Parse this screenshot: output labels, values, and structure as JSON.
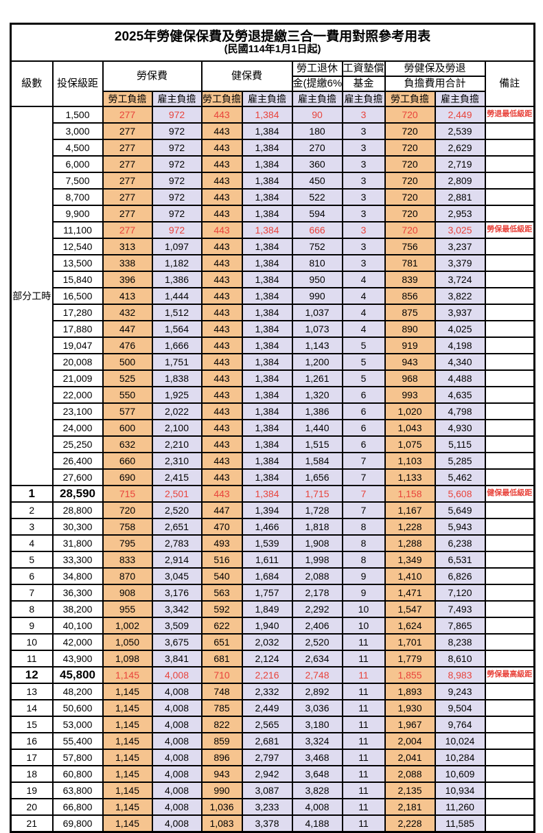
{
  "title": "2025年勞健保保費及勞退提繳三合一費用對照參考用表",
  "subtitle": "(民國114年1月1日起)",
  "header": {
    "level": "級數",
    "bracket": "投保級距",
    "labor": "勞保費",
    "health": "健保費",
    "pension_line1": "勞工退休",
    "pension_line2": "金(提繳6%)",
    "wage_line1": "工資墊償",
    "wage_line2": "基金",
    "total_line1": "勞健保及勞退",
    "total_line2": "負擔費用合計",
    "note": "備註",
    "employee": "勞工負擔",
    "employer": "雇主負擔"
  },
  "part_time": {
    "label": "部分工時",
    "span": 23
  },
  "colors": {
    "employee_bg": "#F6C48F",
    "employer_bg": "#DFDCF0",
    "highlight_red": "#E8433B"
  },
  "rows": [
    {
      "bracket": "1,500",
      "v": [
        "277",
        "972",
        "443",
        "1,384",
        "90",
        "3",
        "720",
        "2,449"
      ],
      "note": "勞退最低級距",
      "red": true
    },
    {
      "bracket": "3,000",
      "v": [
        "277",
        "972",
        "443",
        "1,384",
        "180",
        "3",
        "720",
        "2,539"
      ]
    },
    {
      "bracket": "4,500",
      "v": [
        "277",
        "972",
        "443",
        "1,384",
        "270",
        "3",
        "720",
        "2,629"
      ]
    },
    {
      "bracket": "6,000",
      "v": [
        "277",
        "972",
        "443",
        "1,384",
        "360",
        "3",
        "720",
        "2,719"
      ]
    },
    {
      "bracket": "7,500",
      "v": [
        "277",
        "972",
        "443",
        "1,384",
        "450",
        "3",
        "720",
        "2,809"
      ]
    },
    {
      "bracket": "8,700",
      "v": [
        "277",
        "972",
        "443",
        "1,384",
        "522",
        "3",
        "720",
        "2,881"
      ]
    },
    {
      "bracket": "9,900",
      "v": [
        "277",
        "972",
        "443",
        "1,384",
        "594",
        "3",
        "720",
        "2,953"
      ]
    },
    {
      "bracket": "11,100",
      "v": [
        "277",
        "972",
        "443",
        "1,384",
        "666",
        "3",
        "720",
        "3,025"
      ],
      "note": "勞保最低級距",
      "red": true
    },
    {
      "bracket": "12,540",
      "v": [
        "313",
        "1,097",
        "443",
        "1,384",
        "752",
        "3",
        "756",
        "3,237"
      ]
    },
    {
      "bracket": "13,500",
      "v": [
        "338",
        "1,182",
        "443",
        "1,384",
        "810",
        "3",
        "781",
        "3,379"
      ]
    },
    {
      "bracket": "15,840",
      "v": [
        "396",
        "1,386",
        "443",
        "1,384",
        "950",
        "4",
        "839",
        "3,724"
      ]
    },
    {
      "bracket": "16,500",
      "v": [
        "413",
        "1,444",
        "443",
        "1,384",
        "990",
        "4",
        "856",
        "3,822"
      ]
    },
    {
      "bracket": "17,280",
      "v": [
        "432",
        "1,512",
        "443",
        "1,384",
        "1,037",
        "4",
        "875",
        "3,937"
      ]
    },
    {
      "bracket": "17,880",
      "v": [
        "447",
        "1,564",
        "443",
        "1,384",
        "1,073",
        "4",
        "890",
        "4,025"
      ]
    },
    {
      "bracket": "19,047",
      "v": [
        "476",
        "1,666",
        "443",
        "1,384",
        "1,143",
        "5",
        "919",
        "4,198"
      ]
    },
    {
      "bracket": "20,008",
      "v": [
        "500",
        "1,751",
        "443",
        "1,384",
        "1,200",
        "5",
        "943",
        "4,340"
      ]
    },
    {
      "bracket": "21,009",
      "v": [
        "525",
        "1,838",
        "443",
        "1,384",
        "1,261",
        "5",
        "968",
        "4,488"
      ]
    },
    {
      "bracket": "22,000",
      "v": [
        "550",
        "1,925",
        "443",
        "1,384",
        "1,320",
        "6",
        "993",
        "4,635"
      ]
    },
    {
      "bracket": "23,100",
      "v": [
        "577",
        "2,022",
        "443",
        "1,384",
        "1,386",
        "6",
        "1,020",
        "4,798"
      ]
    },
    {
      "bracket": "24,000",
      "v": [
        "600",
        "2,100",
        "443",
        "1,384",
        "1,440",
        "6",
        "1,043",
        "4,930"
      ]
    },
    {
      "bracket": "25,250",
      "v": [
        "632",
        "2,210",
        "443",
        "1,384",
        "1,515",
        "6",
        "1,075",
        "5,115"
      ]
    },
    {
      "bracket": "26,400",
      "v": [
        "660",
        "2,310",
        "443",
        "1,384",
        "1,584",
        "7",
        "1,103",
        "5,285"
      ]
    },
    {
      "bracket": "27,600",
      "v": [
        "690",
        "2,415",
        "443",
        "1,384",
        "1,656",
        "7",
        "1,133",
        "5,462"
      ]
    },
    {
      "level": "1",
      "bracket": "28,590",
      "v": [
        "715",
        "2,501",
        "443",
        "1,384",
        "1,715",
        "7",
        "1,158",
        "5,608"
      ],
      "note": "健保最低級距",
      "red": true,
      "em": true
    },
    {
      "level": "2",
      "bracket": "28,800",
      "v": [
        "720",
        "2,520",
        "447",
        "1,394",
        "1,728",
        "7",
        "1,167",
        "5,649"
      ]
    },
    {
      "level": "3",
      "bracket": "30,300",
      "v": [
        "758",
        "2,651",
        "470",
        "1,466",
        "1,818",
        "8",
        "1,228",
        "5,943"
      ]
    },
    {
      "level": "4",
      "bracket": "31,800",
      "v": [
        "795",
        "2,783",
        "493",
        "1,539",
        "1,908",
        "8",
        "1,288",
        "6,238"
      ]
    },
    {
      "level": "5",
      "bracket": "33,300",
      "v": [
        "833",
        "2,914",
        "516",
        "1,611",
        "1,998",
        "8",
        "1,349",
        "6,531"
      ]
    },
    {
      "level": "6",
      "bracket": "34,800",
      "v": [
        "870",
        "3,045",
        "540",
        "1,684",
        "2,088",
        "9",
        "1,410",
        "6,826"
      ]
    },
    {
      "level": "7",
      "bracket": "36,300",
      "v": [
        "908",
        "3,176",
        "563",
        "1,757",
        "2,178",
        "9",
        "1,471",
        "7,120"
      ]
    },
    {
      "level": "8",
      "bracket": "38,200",
      "v": [
        "955",
        "3,342",
        "592",
        "1,849",
        "2,292",
        "10",
        "1,547",
        "7,493"
      ]
    },
    {
      "level": "9",
      "bracket": "40,100",
      "v": [
        "1,002",
        "3,509",
        "622",
        "1,940",
        "2,406",
        "10",
        "1,624",
        "7,865"
      ]
    },
    {
      "level": "10",
      "bracket": "42,000",
      "v": [
        "1,050",
        "3,675",
        "651",
        "2,032",
        "2,520",
        "11",
        "1,701",
        "8,238"
      ]
    },
    {
      "level": "11",
      "bracket": "43,900",
      "v": [
        "1,098",
        "3,841",
        "681",
        "2,124",
        "2,634",
        "11",
        "1,779",
        "8,610"
      ]
    },
    {
      "level": "12",
      "bracket": "45,800",
      "v": [
        "1,145",
        "4,008",
        "710",
        "2,216",
        "2,748",
        "11",
        "1,855",
        "8,983"
      ],
      "note": "勞保最高級距",
      "red": true,
      "em": true
    },
    {
      "level": "13",
      "bracket": "48,200",
      "v": [
        "1,145",
        "4,008",
        "748",
        "2,332",
        "2,892",
        "11",
        "1,893",
        "9,243"
      ]
    },
    {
      "level": "14",
      "bracket": "50,600",
      "v": [
        "1,145",
        "4,008",
        "785",
        "2,449",
        "3,036",
        "11",
        "1,930",
        "9,504"
      ]
    },
    {
      "level": "15",
      "bracket": "53,000",
      "v": [
        "1,145",
        "4,008",
        "822",
        "2,565",
        "3,180",
        "11",
        "1,967",
        "9,764"
      ]
    },
    {
      "level": "16",
      "bracket": "55,400",
      "v": [
        "1,145",
        "4,008",
        "859",
        "2,681",
        "3,324",
        "11",
        "2,004",
        "10,024"
      ]
    },
    {
      "level": "17",
      "bracket": "57,800",
      "v": [
        "1,145",
        "4,008",
        "896",
        "2,797",
        "3,468",
        "11",
        "2,041",
        "10,284"
      ]
    },
    {
      "level": "18",
      "bracket": "60,800",
      "v": [
        "1,145",
        "4,008",
        "943",
        "2,942",
        "3,648",
        "11",
        "2,088",
        "10,609"
      ]
    },
    {
      "level": "19",
      "bracket": "63,800",
      "v": [
        "1,145",
        "4,008",
        "990",
        "3,087",
        "3,828",
        "11",
        "2,135",
        "10,934"
      ]
    },
    {
      "level": "20",
      "bracket": "66,800",
      "v": [
        "1,145",
        "4,008",
        "1,036",
        "3,233",
        "4,008",
        "11",
        "2,181",
        "11,260"
      ]
    },
    {
      "level": "21",
      "bracket": "69,800",
      "v": [
        "1,145",
        "4,008",
        "1,083",
        "3,378",
        "4,188",
        "11",
        "2,228",
        "11,585"
      ]
    }
  ]
}
